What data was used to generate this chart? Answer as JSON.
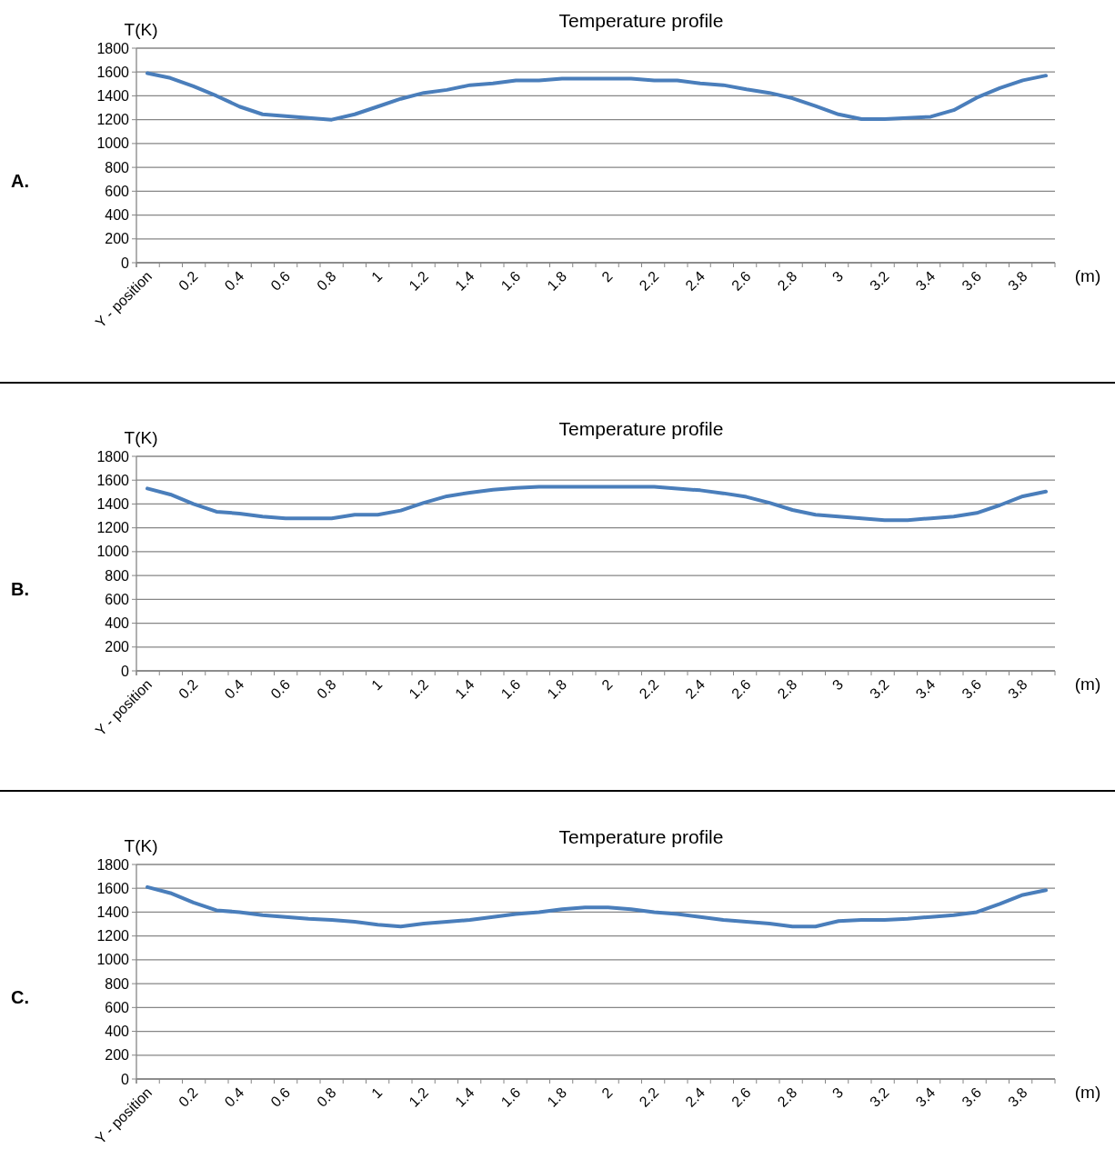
{
  "chart_data": [
    {
      "type": "line",
      "title": "Temperature profile",
      "xlabel": "(m)",
      "ylabel": "T(K)",
      "annotations": [
        "A."
      ],
      "categories": [
        "Y - position",
        null,
        "0.2",
        null,
        "0.4",
        null,
        "0.6",
        null,
        "0.8",
        null,
        "1",
        null,
        "1.2",
        null,
        "1.4",
        null,
        "1.6",
        null,
        "1.8",
        null,
        "2",
        null,
        "2.2",
        null,
        "2.4",
        null,
        "2.6",
        null,
        "2.8",
        null,
        "3",
        null,
        "3.2",
        null,
        "3.4",
        null,
        "3.6",
        null,
        "3.8",
        null
      ],
      "series": [
        {
          "color": "#4a7ebb",
          "values": [
            1590,
            1550,
            1480,
            1400,
            1310,
            1245,
            1230,
            1215,
            1200,
            1245,
            1310,
            1375,
            1425,
            1450,
            1490,
            1505,
            1530,
            1530,
            1545,
            1545,
            1545,
            1545,
            1530,
            1530,
            1505,
            1490,
            1455,
            1425,
            1380,
            1315,
            1245,
            1205,
            1205,
            1215,
            1225,
            1280,
            1385,
            1465,
            1530,
            1570
          ]
        }
      ],
      "ylim": [
        0,
        1800
      ],
      "yticks": [
        0,
        200,
        400,
        600,
        800,
        1000,
        1200,
        1400,
        1600,
        1800
      ],
      "grid": "y",
      "marker": "none",
      "line_style": "solid"
    },
    {
      "type": "line",
      "title": "Temperature profile",
      "xlabel": "(m)",
      "ylabel": "T(K)",
      "annotations": [
        "B."
      ],
      "categories": [
        "Y - position",
        null,
        "0.2",
        null,
        "0.4",
        null,
        "0.6",
        null,
        "0.8",
        null,
        "1",
        null,
        "1.2",
        null,
        "1.4",
        null,
        "1.6",
        null,
        "1.8",
        null,
        "2",
        null,
        "2.2",
        null,
        "2.4",
        null,
        "2.6",
        null,
        "2.8",
        null,
        "3",
        null,
        "3.2",
        null,
        "3.4",
        null,
        "3.6",
        null,
        "3.8",
        null
      ],
      "series": [
        {
          "color": "#4a7ebb",
          "values": [
            1530,
            1480,
            1400,
            1335,
            1320,
            1295,
            1280,
            1280,
            1280,
            1310,
            1310,
            1345,
            1410,
            1465,
            1495,
            1520,
            1535,
            1545,
            1545,
            1545,
            1545,
            1545,
            1545,
            1530,
            1515,
            1490,
            1460,
            1410,
            1350,
            1310,
            1295,
            1280,
            1265,
            1265,
            1280,
            1295,
            1325,
            1390,
            1465,
            1505
          ]
        }
      ],
      "ylim": [
        0,
        1800
      ],
      "yticks": [
        0,
        200,
        400,
        600,
        800,
        1000,
        1200,
        1400,
        1600,
        1800
      ],
      "grid": "y",
      "marker": "none",
      "line_style": "solid"
    },
    {
      "type": "line",
      "title": "Temperature profile",
      "xlabel": "(m)",
      "ylabel": "T(K)",
      "annotations": [
        "C."
      ],
      "categories": [
        "Y - position",
        null,
        "0.2",
        null,
        "0.4",
        null,
        "0.6",
        null,
        "0.8",
        null,
        "1",
        null,
        "1.2",
        null,
        "1.4",
        null,
        "1.6",
        null,
        "1.8",
        null,
        "2",
        null,
        "2.2",
        null,
        "2.4",
        null,
        "2.6",
        null,
        "2.8",
        null,
        "3",
        null,
        "3.2",
        null,
        "3.4",
        null,
        "3.6",
        null,
        "3.8",
        null
      ],
      "series": [
        {
          "color": "#4a7ebb",
          "values": [
            1610,
            1560,
            1480,
            1415,
            1400,
            1375,
            1360,
            1345,
            1335,
            1320,
            1295,
            1280,
            1305,
            1320,
            1335,
            1360,
            1385,
            1400,
            1425,
            1440,
            1440,
            1425,
            1400,
            1385,
            1360,
            1335,
            1320,
            1305,
            1280,
            1280,
            1325,
            1335,
            1335,
            1345,
            1360,
            1375,
            1400,
            1470,
            1545,
            1585
          ]
        }
      ],
      "ylim": [
        0,
        1800
      ],
      "yticks": [
        0,
        200,
        400,
        600,
        800,
        1000,
        1200,
        1400,
        1600,
        1800
      ],
      "grid": "y",
      "marker": "none",
      "line_style": "solid"
    }
  ]
}
